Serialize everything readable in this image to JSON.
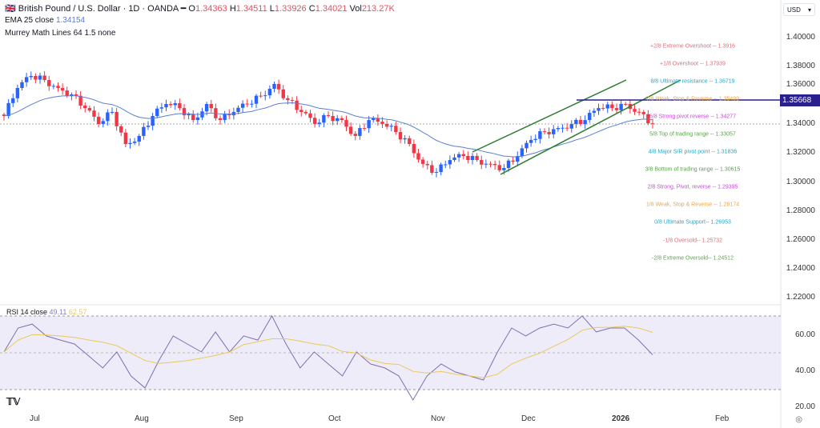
{
  "header": {
    "title": "British Pound / U.S. Dollar · 1D · OANDA",
    "o_label": "O",
    "open": "1.34363",
    "h_label": "H",
    "high": "1.34511",
    "l_label": "L",
    "low": "1.33926",
    "c_label": "C",
    "close": "1.34021",
    "vol_label": "Vol",
    "volume": "213.27K",
    "ema_label": "EMA 25 close",
    "ema_value": "1.34154",
    "murrey_label": "Murrey Math Lines 64 1.5 none"
  },
  "currency": "USD",
  "current_line_price": "1.35668",
  "rsi": {
    "label": "RSI 14 close",
    "value": "49.11",
    "ma_value": "62.57"
  },
  "price_axis": [
    "1.40000",
    "1.38000",
    "1.36000",
    "1.34000",
    "1.32000",
    "1.30000",
    "1.28000",
    "1.26000",
    "1.24000",
    "1.22000"
  ],
  "rsi_axis": [
    "60.00",
    "40.00",
    "20.00"
  ],
  "time_axis": [
    "Jul",
    "Aug",
    "Sep",
    "Oct",
    "Nov",
    "Dec",
    "2026",
    "Feb"
  ],
  "murrey": [
    {
      "text": "+2/8 Extreme Overshoot --  1.3916",
      "price": 1.3916,
      "color": "#e06b78"
    },
    {
      "text": "+1/8 Overshoot --  1.37939",
      "price": 1.37939,
      "color": "#e06b78"
    },
    {
      "text": "8/8 Ultimate resistance --  1.36719",
      "price": 1.36719,
      "color": "#22a9c9"
    },
    {
      "text": "7/8 Weak, Stop & Reverse --  1.35499",
      "price": 1.35499,
      "color": "#e8a848"
    },
    {
      "text": "6/8 Strong pivot reverse --  1.34277",
      "price": 1.34277,
      "color": "#c050d0"
    },
    {
      "text": "5/8 Top of trading range --  1.33057",
      "price": 1.33057,
      "color": "#5fa050"
    },
    {
      "text": "4/8 Major S/R pivot point --  1.31836",
      "price": 1.31836,
      "color": "#22a9c9"
    },
    {
      "text": "3/8 Bottom of trading range --  1.30615",
      "price": 1.30615,
      "color": "#5fa050"
    },
    {
      "text": "2/8 Strong, Pivot, reverse --  1.29395",
      "price": 1.29395,
      "color": "#c050d0"
    },
    {
      "text": "1/8 Weak, Stop & Reverse --  1.28174",
      "price": 1.28174,
      "color": "#e8a848"
    },
    {
      "text": "0/8 Ultimate Support--  1.26953",
      "price": 1.26953,
      "color": "#22a9c9"
    },
    {
      "text": "-1/8 Oversold--  1.25732",
      "price": 1.25732,
      "color": "#e06b78"
    },
    {
      "text": "-2/8 Extreme Oversold--  1.24512",
      "price": 1.24512,
      "color": "#5fa050"
    }
  ],
  "colors": {
    "up": "#2962ff",
    "down": "#f23645",
    "ema": "#5b7fd6",
    "rsi": "#7e6fb0",
    "rsi_ma": "#e8c95a",
    "channel": "#2e7d32",
    "hline": "#2a1f8f"
  },
  "chart_data": {
    "type": "candlestick",
    "closes": [
      1.3457,
      1.3651,
      1.3734,
      1.3706,
      1.3651,
      1.3607,
      1.3512,
      1.3402,
      1.3485,
      1.3263,
      1.3319,
      1.3457,
      1.354,
      1.3512,
      1.3429,
      1.354,
      1.3429,
      1.3485,
      1.354,
      1.3596,
      1.3679,
      1.3568,
      1.3485,
      1.3402,
      1.3457,
      1.3429,
      1.3319,
      1.3429,
      1.3402,
      1.3346,
      1.3263,
      1.3125,
      1.3069,
      1.3152,
      1.318,
      1.3152,
      1.3125,
      1.3097,
      1.318,
      1.3291,
      1.3346,
      1.3374,
      1.3402,
      1.3429,
      1.3512,
      1.3512,
      1.354,
      1.3485,
      1.3402
    ],
    "rsi_values": [
      50.7,
      64,
      66.2,
      59.6,
      57.3,
      55.1,
      48.5,
      41.8,
      50.7,
      37.4,
      30.7,
      46.2,
      59.6,
      55.1,
      50.7,
      61.8,
      50.7,
      59.6,
      57.3,
      70.7,
      55.1,
      41.8,
      50.7,
      44,
      37.4,
      50.7,
      44,
      41.8,
      37.4,
      24,
      37.4,
      44,
      39.6,
      37.4,
      35.1,
      50.7,
      64,
      59.6,
      64,
      66.2,
      64,
      70.7,
      61.8,
      64,
      64,
      57.3,
      49.1
    ],
    "ylim": [
      1.22,
      1.4
    ],
    "rsi_ylim": [
      20,
      70
    ]
  }
}
